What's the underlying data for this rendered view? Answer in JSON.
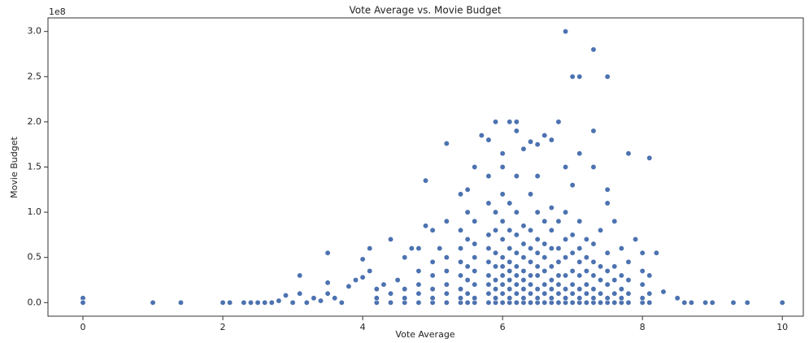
{
  "chart_data": {
    "type": "scatter",
    "title": "Vote Average vs. Movie Budget",
    "x_label": "Vote Average",
    "y_label": "Movie Budget",
    "y_offset_label": "1e8",
    "color": "#4c72b0",
    "xlim": [
      -0.5,
      10.3
    ],
    "ylim": [
      -0.15,
      3.15
    ],
    "xticks": [
      0,
      2,
      4,
      6,
      8,
      10
    ],
    "yticks": [
      {
        "value": 0,
        "label": "0.0"
      },
      0.5,
      {
        "value": 1,
        "label": "1.0"
      },
      1.5,
      {
        "value": 2,
        "label": "2.0"
      },
      2.5,
      {
        "value": 3,
        "label": "3.0"
      }
    ],
    "x": [
      0,
      0,
      1,
      1.4,
      2,
      2.1,
      2.3,
      2.4,
      2.5,
      2.6,
      2.7,
      2.8,
      2.9,
      3.0,
      3.1,
      3.1,
      3.2,
      3.3,
      3.4,
      3.5,
      3.5,
      3.5,
      3.6,
      3.7,
      3.8,
      3.9,
      4.0,
      4.0,
      4.1,
      4.1,
      4.2,
      4.3,
      4.4,
      4.5,
      4.6,
      4.7,
      4.8,
      4.9,
      4.9,
      5.0,
      5.1,
      5.2,
      5.2,
      5.4,
      5.5,
      5.6,
      5.7,
      5.8,
      5.9,
      6.0,
      6.1,
      6.2,
      6.2,
      6.3,
      6.4,
      6.5,
      6.6,
      6.7,
      6.8,
      6.9,
      6.9,
      7.0,
      7.1,
      7.1,
      7.3,
      7.3,
      7.5,
      7.5,
      7.8,
      8.1,
      7.9,
      8.0,
      8.2,
      8.3,
      8.5,
      8.6,
      8.7,
      8.9,
      9.0,
      9.3,
      9.5,
      10,
      4.2,
      4.2,
      4.4,
      4.4,
      4.6,
      4.6,
      4.6,
      4.8,
      4.8,
      4.8,
      4.8,
      5.0,
      5.0,
      5.0,
      5.0,
      5.0,
      5.2,
      5.2,
      5.2,
      5.2,
      5.2,
      5.4,
      5.4,
      5.4,
      5.4,
      5.4,
      5.4,
      5.4,
      5.5,
      5.5,
      5.5,
      5.5,
      5.5,
      5.5,
      5.6,
      5.6,
      5.6,
      5.6,
      5.6,
      5.6,
      5.6,
      5.8,
      5.8,
      5.8,
      5.8,
      5.8,
      5.8,
      5.8,
      5.8,
      5.8,
      5.9,
      5.9,
      5.9,
      5.9,
      5.9,
      5.9,
      5.9,
      5.9,
      6.0,
      6.0,
      6.0,
      6.0,
      6.0,
      6.0,
      6.0,
      6.0,
      6.0,
      6.0,
      6.1,
      6.1,
      6.1,
      6.1,
      6.1,
      6.1,
      6.1,
      6.1,
      6.1,
      6.2,
      6.2,
      6.2,
      6.2,
      6.2,
      6.2,
      6.2,
      6.2,
      6.2,
      6.3,
      6.3,
      6.3,
      6.3,
      6.3,
      6.3,
      6.3,
      6.3,
      6.4,
      6.4,
      6.4,
      6.4,
      6.4,
      6.4,
      6.4,
      6.4,
      6.5,
      6.5,
      6.5,
      6.5,
      6.5,
      6.5,
      6.5,
      6.5,
      6.5,
      6.6,
      6.6,
      6.6,
      6.6,
      6.6,
      6.6,
      6.6,
      6.7,
      6.7,
      6.7,
      6.7,
      6.7,
      6.7,
      6.7,
      6.7,
      6.8,
      6.8,
      6.8,
      6.8,
      6.8,
      6.8,
      6.8,
      6.9,
      6.9,
      6.9,
      6.9,
      6.9,
      6.9,
      6.9,
      7.0,
      7.0,
      7.0,
      7.0,
      7.0,
      7.0,
      7.0,
      7.1,
      7.1,
      7.1,
      7.1,
      7.1,
      7.1,
      7.1,
      7.2,
      7.2,
      7.2,
      7.2,
      7.2,
      7.2,
      7.3,
      7.3,
      7.3,
      7.3,
      7.3,
      7.3,
      7.3,
      7.4,
      7.4,
      7.4,
      7.4,
      7.4,
      7.5,
      7.5,
      7.5,
      7.5,
      7.5,
      7.5,
      7.6,
      7.6,
      7.6,
      7.6,
      7.6,
      7.7,
      7.7,
      7.7,
      7.7,
      7.7,
      7.8,
      7.8,
      7.8,
      7.8,
      8.0,
      8.0,
      8.0,
      8.0,
      8.1,
      8.1,
      8.1
    ],
    "values": [
      0.05,
      0,
      0,
      0,
      0,
      0,
      0,
      0,
      0,
      0,
      0,
      0.02,
      0.08,
      0,
      0.3,
      0.1,
      0,
      0.05,
      0.02,
      0.55,
      0.22,
      0.1,
      0.05,
      0,
      0.18,
      0.25,
      0.48,
      0.28,
      0.6,
      0.35,
      0.15,
      0.2,
      0.7,
      0.25,
      0.5,
      0.6,
      0.6,
      1.35,
      0.85,
      0.8,
      0.6,
      1.76,
      0.9,
      1.2,
      1.25,
      1.5,
      1.85,
      1.8,
      2.0,
      1.65,
      2.0,
      2.0,
      1.9,
      1.7,
      1.78,
      1.75,
      1.85,
      1.8,
      2.0,
      3.0,
      1.5,
      2.5,
      2.5,
      1.65,
      2.8,
      1.9,
      2.5,
      1.25,
      1.65,
      1.6,
      0.7,
      0.55,
      0.55,
      0.12,
      0.05,
      0,
      0,
      0,
      0,
      0,
      0,
      0,
      0,
      0.05,
      0,
      0.1,
      0,
      0.05,
      0.15,
      0,
      0.1,
      0.2,
      0.35,
      0,
      0.05,
      0.15,
      0.3,
      0.45,
      0,
      0.1,
      0.2,
      0.35,
      0.5,
      0,
      0.05,
      0.15,
      0.3,
      0.45,
      0.6,
      0.8,
      0,
      0.1,
      0.25,
      0.4,
      0.7,
      1.0,
      0,
      0.05,
      0.2,
      0.35,
      0.5,
      0.65,
      0.9,
      0,
      0.1,
      0.2,
      0.3,
      0.45,
      0.6,
      0.75,
      1.1,
      1.4,
      0,
      0.05,
      0.15,
      0.25,
      0.4,
      0.55,
      0.8,
      1.0,
      0,
      0.1,
      0.2,
      0.3,
      0.4,
      0.5,
      0.7,
      0.9,
      1.2,
      1.5,
      0,
      0.05,
      0.15,
      0.25,
      0.35,
      0.45,
      0.6,
      0.8,
      1.1,
      0,
      0.1,
      0.2,
      0.3,
      0.4,
      0.55,
      0.75,
      1.0,
      1.4,
      0,
      0.05,
      0.15,
      0.25,
      0.35,
      0.5,
      0.65,
      0.85,
      0,
      0.1,
      0.2,
      0.3,
      0.45,
      0.6,
      0.8,
      1.2,
      0,
      0.05,
      0.15,
      0.3,
      0.4,
      0.55,
      0.7,
      1.0,
      1.4,
      0,
      0.1,
      0.2,
      0.35,
      0.5,
      0.65,
      0.9,
      0,
      0.05,
      0.15,
      0.25,
      0.4,
      0.6,
      0.8,
      1.05,
      0,
      0.1,
      0.2,
      0.3,
      0.45,
      0.6,
      0.9,
      0,
      0.05,
      0.15,
      0.3,
      0.5,
      0.7,
      1.0,
      0,
      0.1,
      0.2,
      0.35,
      0.55,
      0.75,
      1.3,
      0,
      0.05,
      0.15,
      0.3,
      0.45,
      0.6,
      0.9,
      0,
      0.1,
      0.2,
      0.35,
      0.5,
      0.7,
      0,
      0.05,
      0.15,
      0.3,
      0.45,
      0.65,
      1.5,
      0,
      0.1,
      0.25,
      0.4,
      0.8,
      0,
      0.05,
      0.2,
      0.35,
      0.55,
      1.1,
      0,
      0.1,
      0.25,
      0.4,
      0.9,
      0,
      0.05,
      0.15,
      0.3,
      0.6,
      0,
      0.1,
      0.25,
      0.45,
      0,
      0.05,
      0.2,
      0.35,
      0,
      0.1,
      0.3
    ]
  }
}
